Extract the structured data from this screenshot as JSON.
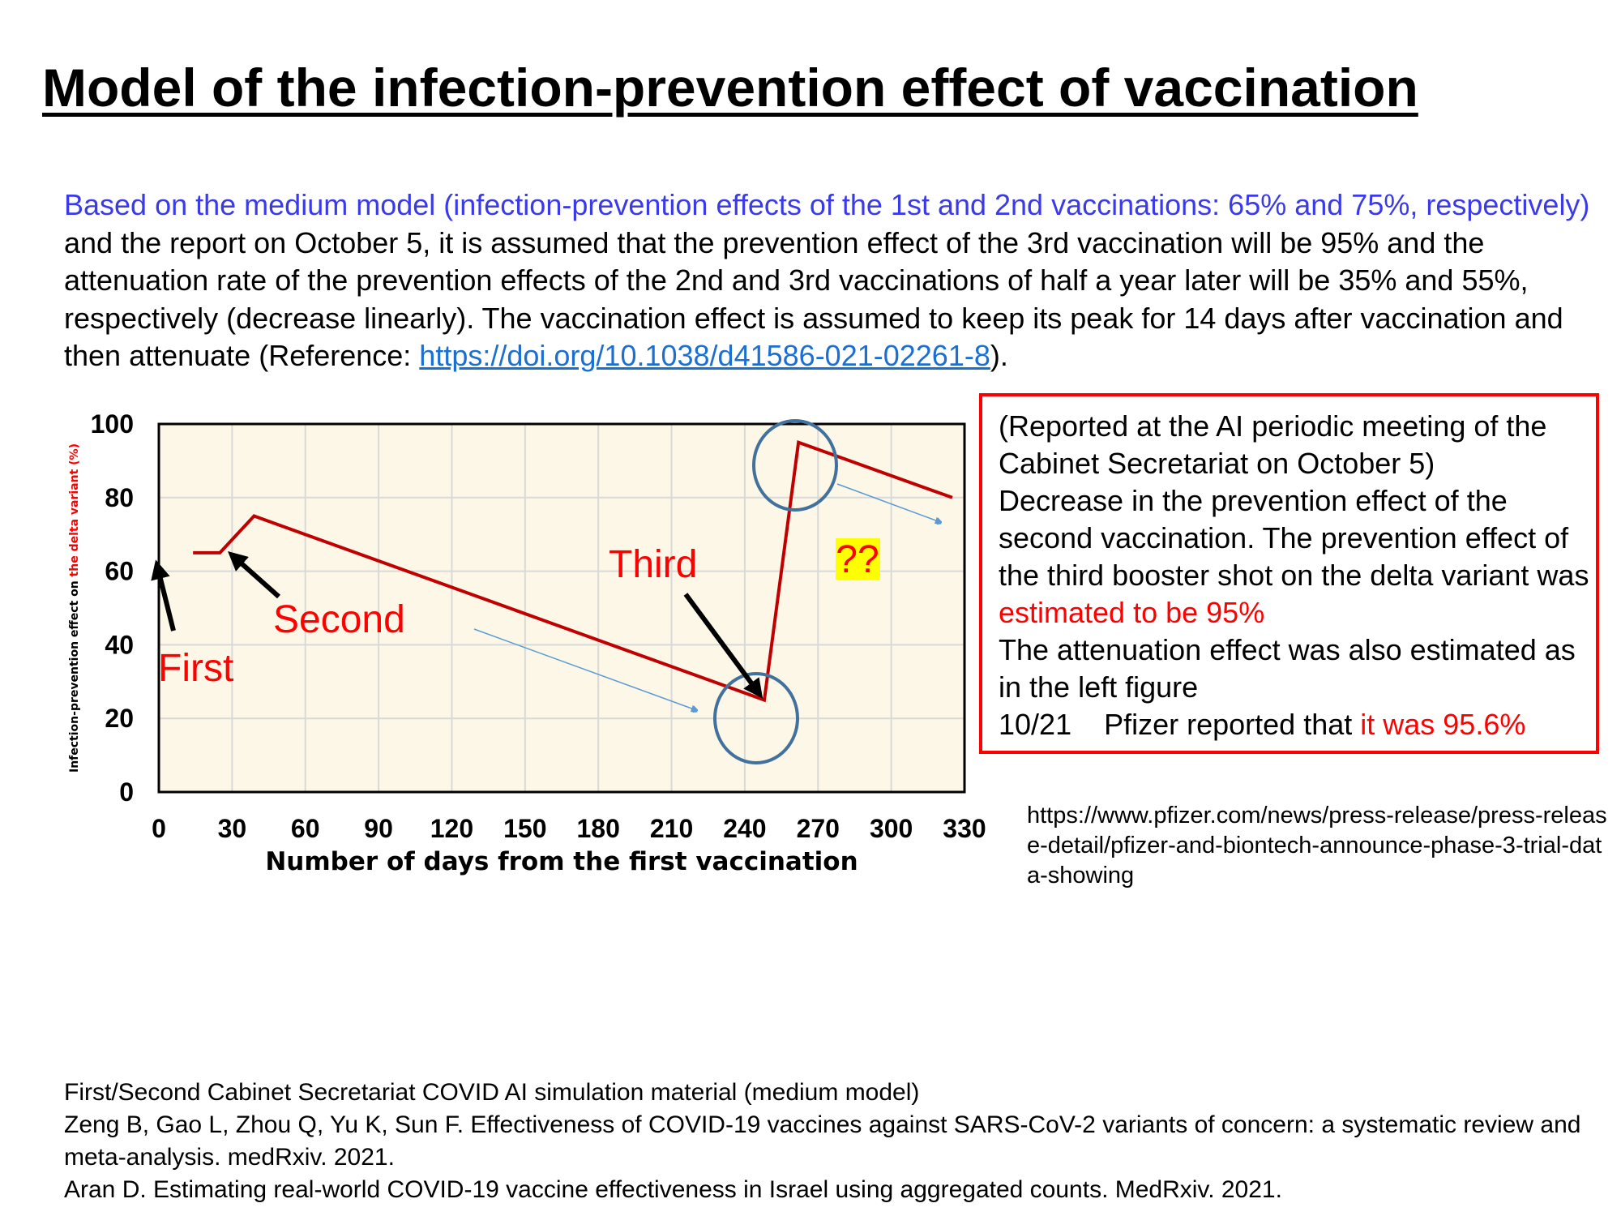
{
  "title": "Model of the infection-prevention effect of vaccination",
  "intro": {
    "blue_part": "Based on the medium model (infection-prevention effects of the 1st and 2nd vaccinations: 65% and 75%, respectively)",
    "black_part": " and the report on October 5, it is assumed that the prevention effect of the 3rd vaccination will be 95% and the attenuation rate of the prevention effects of the 2nd and 3rd vaccinations of half a year later will be 35% and 55%, respectively (decrease linearly). The vaccination effect is assumed to keep its peak for 14 days after vaccination and then attenuate (Reference: ",
    "link": "https://doi.org/10.1038/d41586-021-02261-8",
    "end": ")."
  },
  "chart_data": {
    "type": "line",
    "title": "",
    "xlabel": "Number of days from the first vaccination",
    "ylabel_black": "Infection-prevention effect on ",
    "ylabel_red": "the delta variant (%)",
    "xlim": [
      0,
      330
    ],
    "ylim": [
      0,
      100
    ],
    "xticks": [
      "0",
      "30",
      "60",
      "90",
      "120",
      "150",
      "180",
      "210",
      "240",
      "270",
      "300",
      "330"
    ],
    "yticks": [
      "0",
      "20",
      "40",
      "60",
      "80",
      "100"
    ],
    "grid": true,
    "background": "#fdf7e7",
    "line_color": "#c00000",
    "series": [
      {
        "name": "Prevention effect",
        "x": [
          14,
          25,
          39,
          248,
          262,
          325
        ],
        "y": [
          65,
          65,
          75,
          25,
          95,
          80
        ]
      }
    ],
    "annotations": {
      "first": "First",
      "second": "Second",
      "third": "Third",
      "unknown": "??"
    }
  },
  "report_box": {
    "line1": "(Reported at the AI periodic meeting of the Cabinet Secretariat on October 5)",
    "line2": "Decrease in the prevention effect of the second vaccination. The prevention effect of the third booster shot on the delta variant was ",
    "line2_red": "estimated to be 95%",
    "line3": "The attenuation effect was also estimated as in the left figure",
    "line4": "10/21    Pfizer reported that ",
    "line4_red": "it was 95.6%"
  },
  "pfizer_url": "https://www.pfizer.com/news/press-release/press-release-detail/pfizer-and-biontech-announce-phase-3-trial-data-showing",
  "references": [
    "First/Second Cabinet Secretariat COVID AI simulation material (medium model)",
    "Zeng B, Gao L, Zhou Q, Yu K, Sun F. Effectiveness of COVID-19 vaccines against SARS-CoV-2 variants of concern: a systematic review and meta-analysis. medRxiv. 2021.",
    "Aran D. Estimating real-world COVID-19 vaccine effectiveness in Israel using aggregated counts. MedRxiv. 2021."
  ]
}
